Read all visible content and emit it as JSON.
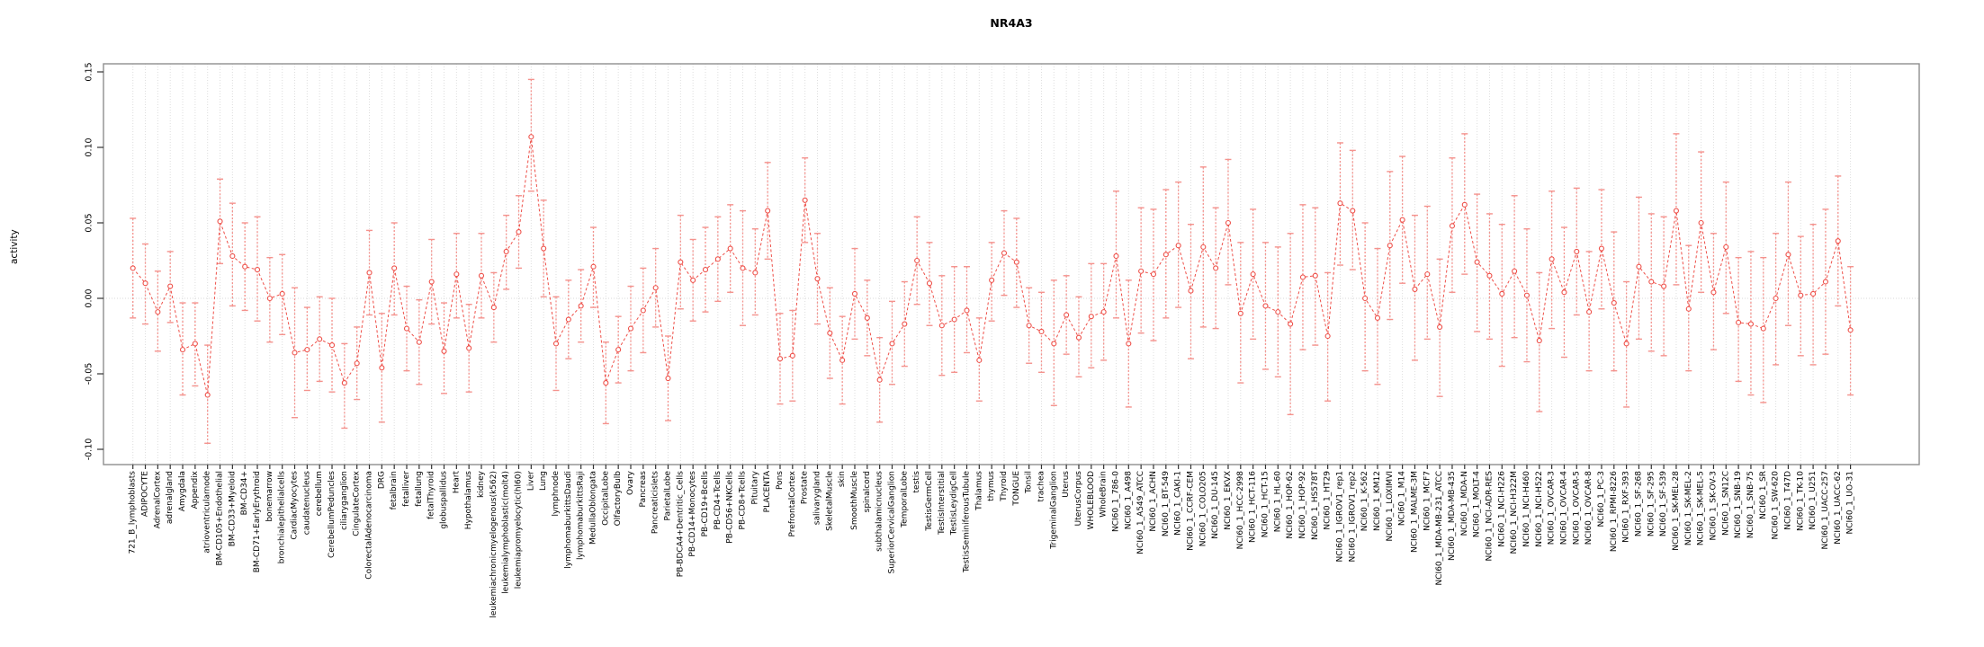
{
  "chart_data": {
    "type": "line",
    "title": "NR4A3",
    "ylabel": "activity",
    "xlabel": "",
    "ylim": [
      -0.107,
      0.155
    ],
    "yticks": [
      -0.1,
      -0.05,
      0.0,
      0.05,
      0.1,
      0.15
    ],
    "grid": "vertical-dotted-per-category",
    "zero_line": true,
    "legend_position": "none",
    "marker": "open-circle",
    "colors": {
      "line": "#ee4f48",
      "error_bar": "#f4928d",
      "grid": "#dedede",
      "zero_line": "#d8d8d8",
      "box": "#8f8f8f",
      "tick": "#333333",
      "text": "#000000",
      "background": "#ffffff"
    },
    "categories": [
      "721_B_lymphoblasts",
      "ADIPOCYTE",
      "AdrenalCortex",
      "adrenalgland",
      "Amygdala",
      "Appendix",
      "atrioventricularnode",
      "BM-CD105+Endothelial",
      "BM-CD33+Myeloid",
      "BM-CD34+",
      "BM-CD71+EarlyErythroid",
      "bonemarrow",
      "bronchialepithelialcells",
      "CardiacMyocytes",
      "caudatenucleus",
      "cerebellum",
      "CerebellumPeduncles",
      "ciliaryganglion",
      "CingulateCortex",
      "ColorectalAdenocarcinoma",
      "DRG",
      "fetalbrain",
      "fetalliver",
      "fetallung",
      "fetalThyroid",
      "globuspallidus",
      "Heart",
      "Hypothalamus",
      "kidney",
      "leukemiachronicmyelogenous(k562)",
      "leukemialymphoblastic(molt4)",
      "leukemiapromyelocytic(hl60)",
      "Liver",
      "Lung",
      "lymphnode",
      "lymphomaburkittsDaudi",
      "lymphomaburkittsRaji",
      "MedullaOblongata",
      "OccipitalLobe",
      "OlfactoryBulb",
      "Ovary",
      "Pancreas",
      "Pancreaticislets",
      "ParietalLobe",
      "PB-BDCA4+Dentritic_Cells",
      "PB-CD14+Monocytes",
      "PB-CD19+Bcells",
      "PB-CD4+Tcells",
      "PB-CD56+NKCells",
      "PB-CD8+Tcells",
      "Pituitary",
      "PLACENTA",
      "Pons",
      "PrefrontalCortex",
      "Prostate",
      "salivarygland",
      "SkeletalMuscle",
      "skin",
      "SmoothMuscle",
      "spinalcord",
      "subthalamicnucleus",
      "SuperiorCervicalGanglion",
      "TemporalLobe",
      "testis",
      "TestisGermCell",
      "TestisInterstitial",
      "TestisLeydigCell",
      "TestisSeminiferousTubule",
      "Thalamus",
      "thymus",
      "Thyroid",
      "TONGUE",
      "Tonsil",
      "trachea",
      "TrigeminalGanglion",
      "Uterus",
      "UterusCorpus",
      "WHOLEBLOOD",
      "WholeBrain",
      "NCI60_1_786-0",
      "NCI60_1_A498",
      "NCI60_1_A549_ATCC",
      "NCI60_1_ACHN",
      "NCI60_1_BT-549",
      "NCI60_1_CAKI-1",
      "NCI60_1_CCRF-CEM",
      "NCI60_1_COLO205",
      "NCI60_1_DU-145",
      "NCI60_1_EKVX",
      "NCI60_1_HCC-2998",
      "NCI60_1_HCT-116",
      "NCI60_1_HCT-15",
      "NCI60_1_HL-60",
      "NCI60_1_HOP-62",
      "NCI60_1_HOP-92",
      "NCI60_1_HS578T",
      "NCI60_1_HT29",
      "NCI60_1_IGROV1_rep1",
      "NCI60_1_IGROV1_rep2",
      "NCI60_1_K-562",
      "NCI60_1_KM12",
      "NCI60_1_LOXIMVI",
      "NCI60_1_M14",
      "NCI60_1_MALME-3M",
      "NCI60_1_MCF7",
      "NCI60_1_MDA-MB-231_ATCC",
      "NCI60_1_MDA-MB-435",
      "NCI60_1_MDA-N",
      "NCI60_1_MOLT-4",
      "NCI60_1_NCI-ADR-RES",
      "NCI60_1_NCI-H226",
      "NCI60_1_NCI-H322M",
      "NCI60_1_NCI-H460",
      "NCI60_1_NCI-H522",
      "NCI60_1_OVCAR-3",
      "NCI60_1_OVCAR-4",
      "NCI60_1_OVCAR-5",
      "NCI60_1_OVCAR-8",
      "NCI60_1_PC-3",
      "NCI60_1_RPMI-8226",
      "NCI60_1_RXF-393",
      "NCI60_1_SF-268",
      "NCI60_1_SF-295",
      "NCI60_1_SF-539",
      "NCI60_1_SK-MEL-28",
      "NCI60_1_SK-MEL-2",
      "NCI60_1_SK-MEL-5",
      "NCI60_1_SK-OV-3",
      "NCI60_1_SN12C",
      "NCI60_1_SNB-19",
      "NCI60_1_SNB-75",
      "NCI60_1_SR",
      "NCI60_1_SW-620",
      "NCI60_1_T47D",
      "NCI60_1_TK-10",
      "NCI60_1_U251",
      "NCI60_1_UACC-257",
      "NCI60_1_UACC-62",
      "NCI60_1_UO-31"
    ],
    "series": [
      {
        "name": "activity",
        "values": [
          0.02,
          0.01,
          -0.009,
          0.008,
          -0.034,
          -0.03,
          -0.064,
          0.051,
          0.028,
          0.021,
          0.019,
          0.0,
          0.003,
          -0.036,
          -0.034,
          -0.027,
          -0.031,
          -0.056,
          -0.043,
          0.017,
          -0.046,
          0.02,
          -0.02,
          -0.029,
          0.011,
          -0.035,
          0.016,
          -0.033,
          0.015,
          -0.006,
          0.031,
          0.044,
          0.107,
          0.033,
          -0.03,
          -0.014,
          -0.005,
          0.021,
          -0.056,
          -0.034,
          -0.02,
          -0.008,
          0.007,
          -0.053,
          0.024,
          0.012,
          0.019,
          0.026,
          0.033,
          0.02,
          0.017,
          0.058,
          -0.04,
          -0.038,
          0.065,
          0.013,
          -0.023,
          -0.041,
          0.003,
          -0.013,
          -0.054,
          -0.03,
          -0.017,
          0.025,
          0.01,
          -0.018,
          -0.014,
          -0.008,
          -0.041,
          0.012,
          0.03,
          0.024,
          -0.018,
          -0.022,
          -0.03,
          -0.011,
          -0.026,
          -0.012,
          -0.009,
          0.028,
          -0.03,
          0.018,
          0.016,
          0.029,
          0.035,
          0.005,
          0.034,
          0.02,
          0.05,
          -0.01,
          0.016,
          -0.005,
          -0.009,
          -0.017,
          0.014,
          0.015,
          -0.025,
          0.063,
          0.058,
          0.0,
          -0.013,
          0.035,
          0.052,
          0.006,
          0.016,
          -0.019,
          0.048,
          0.062,
          0.024,
          0.015,
          0.003,
          0.018,
          0.002,
          -0.028,
          0.026,
          0.004,
          0.031,
          -0.009,
          0.033,
          -0.003,
          -0.03,
          0.021,
          0.011,
          0.008,
          0.058,
          -0.007,
          0.05,
          0.004,
          0.034,
          -0.016,
          -0.017,
          -0.02,
          0.0,
          0.029,
          0.002,
          0.003,
          0.011,
          0.038,
          -0.021
        ]
      },
      {
        "name": "upper",
        "values": [
          0.053,
          0.036,
          0.018,
          0.031,
          -0.003,
          -0.003,
          -0.031,
          0.079,
          0.063,
          0.05,
          0.054,
          0.027,
          0.029,
          0.007,
          -0.006,
          0.001,
          0.0,
          -0.03,
          -0.019,
          0.045,
          -0.01,
          0.05,
          0.008,
          -0.001,
          0.039,
          -0.003,
          0.043,
          -0.004,
          0.043,
          0.017,
          0.055,
          0.068,
          0.145,
          0.065,
          0.001,
          0.012,
          0.019,
          0.047,
          -0.029,
          -0.012,
          0.008,
          0.02,
          0.033,
          -0.025,
          0.055,
          0.039,
          0.047,
          0.054,
          0.062,
          0.058,
          0.046,
          0.09,
          -0.01,
          -0.008,
          0.093,
          0.043,
          0.007,
          -0.012,
          0.033,
          0.012,
          -0.026,
          -0.002,
          0.011,
          0.054,
          0.037,
          0.015,
          0.021,
          0.021,
          -0.013,
          0.037,
          0.058,
          0.053,
          0.007,
          0.004,
          0.012,
          0.015,
          0.001,
          0.023,
          0.023,
          0.071,
          0.012,
          0.06,
          0.059,
          0.072,
          0.077,
          0.049,
          0.087,
          0.06,
          0.092,
          0.037,
          0.059,
          0.037,
          0.034,
          0.043,
          0.062,
          0.06,
          0.017,
          0.103,
          0.098,
          0.05,
          0.033,
          0.084,
          0.094,
          0.055,
          0.061,
          0.026,
          0.093,
          0.109,
          0.069,
          0.056,
          0.049,
          0.068,
          0.046,
          0.017,
          0.071,
          0.047,
          0.073,
          0.031,
          0.072,
          0.044,
          0.011,
          0.067,
          0.056,
          0.054,
          0.109,
          0.035,
          0.097,
          0.043,
          0.077,
          0.027,
          0.031,
          0.027,
          0.043,
          0.077,
          0.041,
          0.049,
          0.059,
          0.081,
          0.021
        ]
      },
      {
        "name": "lower",
        "values": [
          -0.013,
          -0.017,
          -0.035,
          -0.016,
          -0.064,
          -0.058,
          -0.096,
          0.023,
          -0.005,
          -0.008,
          -0.015,
          -0.029,
          -0.024,
          -0.079,
          -0.061,
          -0.055,
          -0.062,
          -0.086,
          -0.067,
          -0.011,
          -0.082,
          -0.011,
          -0.048,
          -0.057,
          -0.017,
          -0.063,
          -0.013,
          -0.062,
          -0.013,
          -0.029,
          0.006,
          0.02,
          0.071,
          0.001,
          -0.061,
          -0.04,
          -0.029,
          -0.006,
          -0.083,
          -0.056,
          -0.048,
          -0.036,
          -0.019,
          -0.081,
          -0.007,
          -0.015,
          -0.009,
          -0.002,
          0.004,
          -0.018,
          -0.011,
          0.026,
          -0.07,
          -0.068,
          0.037,
          -0.017,
          -0.053,
          -0.07,
          -0.027,
          -0.038,
          -0.082,
          -0.057,
          -0.045,
          -0.004,
          -0.018,
          -0.051,
          -0.049,
          -0.036,
          -0.068,
          -0.015,
          0.002,
          -0.006,
          -0.043,
          -0.049,
          -0.071,
          -0.037,
          -0.052,
          -0.046,
          -0.041,
          -0.013,
          -0.072,
          -0.023,
          -0.028,
          -0.013,
          -0.006,
          -0.04,
          -0.019,
          -0.02,
          0.009,
          -0.056,
          -0.027,
          -0.047,
          -0.052,
          -0.077,
          -0.034,
          -0.031,
          -0.068,
          0.022,
          0.019,
          -0.048,
          -0.057,
          -0.014,
          0.01,
          -0.041,
          -0.027,
          -0.065,
          0.004,
          0.016,
          -0.022,
          -0.027,
          -0.045,
          -0.026,
          -0.042,
          -0.075,
          -0.02,
          -0.039,
          -0.011,
          -0.048,
          -0.007,
          -0.048,
          -0.072,
          -0.027,
          -0.035,
          -0.038,
          0.009,
          -0.048,
          0.004,
          -0.034,
          -0.01,
          -0.055,
          -0.064,
          -0.069,
          -0.044,
          -0.018,
          -0.038,
          -0.044,
          -0.037,
          -0.005,
          -0.064
        ]
      }
    ]
  }
}
